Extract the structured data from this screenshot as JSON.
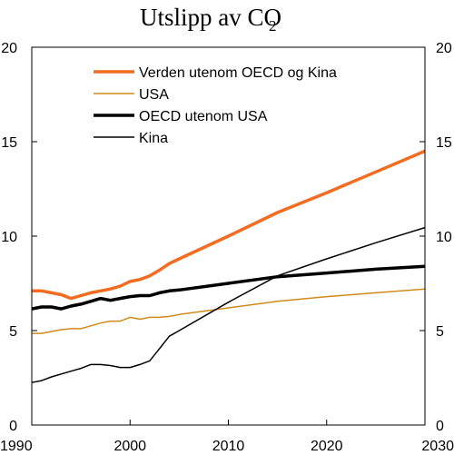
{
  "chart_data": {
    "type": "line",
    "title": "Utslipp av CO",
    "title_subscript": "2",
    "xlim": [
      1990,
      2030
    ],
    "ylim": [
      0,
      20
    ],
    "x_ticks": [
      "1990",
      "2000",
      "2010",
      "2020",
      "2030"
    ],
    "y_ticks": [
      "0",
      "5",
      "10",
      "15",
      "20"
    ],
    "y_ticks_right": [
      "0",
      "5",
      "10",
      "15",
      "20"
    ],
    "legend_position": "top-left",
    "grid": false,
    "series": [
      {
        "name": "Verden utenom OECD og Kina",
        "color": "#f26c22",
        "weight": "thick",
        "points": [
          [
            1990,
            7.1
          ],
          [
            1991,
            7.1
          ],
          [
            1992,
            7.0
          ],
          [
            1993,
            6.9
          ],
          [
            1994,
            6.7
          ],
          [
            1995,
            6.85
          ],
          [
            1996,
            7.0
          ],
          [
            1997,
            7.1
          ],
          [
            1998,
            7.2
          ],
          [
            1999,
            7.35
          ],
          [
            2000,
            7.6
          ],
          [
            2001,
            7.7
          ],
          [
            2002,
            7.9
          ],
          [
            2003,
            8.2
          ],
          [
            2004,
            8.55
          ],
          [
            2005,
            8.8
          ],
          [
            2010,
            10.0
          ],
          [
            2015,
            11.25
          ],
          [
            2020,
            12.3
          ],
          [
            2025,
            13.4
          ],
          [
            2030,
            14.5
          ]
        ]
      },
      {
        "name": "USA",
        "color": "#d08a1a",
        "weight": "thin",
        "points": [
          [
            1990,
            4.85
          ],
          [
            1991,
            4.85
          ],
          [
            1992,
            4.95
          ],
          [
            1993,
            5.05
          ],
          [
            1994,
            5.1
          ],
          [
            1995,
            5.1
          ],
          [
            1996,
            5.25
          ],
          [
            1997,
            5.4
          ],
          [
            1998,
            5.5
          ],
          [
            1999,
            5.5
          ],
          [
            2000,
            5.7
          ],
          [
            2001,
            5.6
          ],
          [
            2002,
            5.7
          ],
          [
            2003,
            5.7
          ],
          [
            2004,
            5.75
          ],
          [
            2005,
            5.85
          ],
          [
            2010,
            6.2
          ],
          [
            2015,
            6.55
          ],
          [
            2020,
            6.8
          ],
          [
            2025,
            7.0
          ],
          [
            2030,
            7.2
          ]
        ]
      },
      {
        "name": "OECD utenom USA",
        "color": "#000000",
        "weight": "thick",
        "points": [
          [
            1990,
            6.15
          ],
          [
            1991,
            6.25
          ],
          [
            1992,
            6.25
          ],
          [
            1993,
            6.15
          ],
          [
            1994,
            6.3
          ],
          [
            1995,
            6.4
          ],
          [
            1996,
            6.55
          ],
          [
            1997,
            6.7
          ],
          [
            1998,
            6.6
          ],
          [
            1999,
            6.7
          ],
          [
            2000,
            6.8
          ],
          [
            2001,
            6.85
          ],
          [
            2002,
            6.85
          ],
          [
            2003,
            7.0
          ],
          [
            2004,
            7.1
          ],
          [
            2005,
            7.15
          ],
          [
            2010,
            7.5
          ],
          [
            2015,
            7.85
          ],
          [
            2020,
            8.05
          ],
          [
            2025,
            8.25
          ],
          [
            2030,
            8.4
          ]
        ]
      },
      {
        "name": "Kina",
        "color": "#000000",
        "weight": "thin",
        "points": [
          [
            1990,
            2.25
          ],
          [
            1991,
            2.35
          ],
          [
            1992,
            2.55
          ],
          [
            1993,
            2.7
          ],
          [
            1994,
            2.85
          ],
          [
            1995,
            3.0
          ],
          [
            1996,
            3.2
          ],
          [
            1997,
            3.2
          ],
          [
            1998,
            3.15
          ],
          [
            1999,
            3.05
          ],
          [
            2000,
            3.05
          ],
          [
            2001,
            3.2
          ],
          [
            2002,
            3.4
          ],
          [
            2003,
            4.05
          ],
          [
            2004,
            4.7
          ],
          [
            2005,
            5.0
          ],
          [
            2010,
            6.5
          ],
          [
            2015,
            7.9
          ],
          [
            2020,
            8.8
          ],
          [
            2025,
            9.65
          ],
          [
            2030,
            10.45
          ]
        ]
      }
    ]
  }
}
